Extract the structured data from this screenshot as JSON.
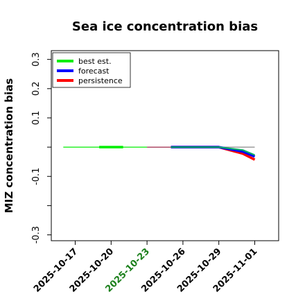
{
  "chart_data": {
    "type": "line",
    "title": "Sea ice concentration bias",
    "ylabel": "MIZ concentration bias",
    "xlabel": "",
    "ylim": [
      -0.32,
      0.33
    ],
    "xlim": [
      "2025-10-15",
      "2025-11-03"
    ],
    "grid": false,
    "legend_position": "top-left",
    "yticks": [
      {
        "value": 0.3,
        "label": "0.3"
      },
      {
        "value": 0.2,
        "label": "0.2"
      },
      {
        "value": 0.1,
        "label": "0.1"
      },
      {
        "value": 0.0,
        "label": ""
      },
      {
        "value": -0.1,
        "label": "-0.1"
      },
      {
        "value": -0.2,
        "label": ""
      },
      {
        "value": -0.3,
        "label": "-0.3"
      }
    ],
    "xticks": [
      {
        "date": "2025-10-17",
        "label": "2025-10-17",
        "color": "#000000"
      },
      {
        "date": "2025-10-20",
        "label": "2025-10-20",
        "color": "#000000"
      },
      {
        "date": "2025-10-23",
        "label": "2025-10-23",
        "color": "#1a7f1a"
      },
      {
        "date": "2025-10-26",
        "label": "2025-10-26",
        "color": "#000000"
      },
      {
        "date": "2025-10-29",
        "label": "2025-10-29",
        "color": "#000000"
      },
      {
        "date": "2025-11-01",
        "label": "2025-11-01",
        "color": "#000000"
      }
    ],
    "reference_line": {
      "y": 0.0,
      "from": "2025-10-23",
      "to": "2025-11-01",
      "color": "#888888"
    },
    "series": [
      {
        "name": "best est.",
        "color": "#00ee00",
        "style": "thin",
        "points": [
          {
            "x": "2025-10-16",
            "y": 0.0
          },
          {
            "x": "2025-10-23",
            "y": 0.0
          }
        ]
      },
      {
        "name": "best est.",
        "color": "#00ee00",
        "style": "thick",
        "points": [
          {
            "x": "2025-10-19",
            "y": 0.0
          },
          {
            "x": "2025-10-21",
            "y": 0.0
          }
        ]
      },
      {
        "name": "best est.",
        "color": "#00aa66",
        "style": "medium",
        "points": [
          {
            "x": "2025-10-25",
            "y": 0.0
          },
          {
            "x": "2025-10-29",
            "y": 0.0
          },
          {
            "x": "2025-10-31",
            "y": -0.01
          },
          {
            "x": "2025-11-01",
            "y": -0.027
          }
        ]
      },
      {
        "name": "forecast",
        "color": "#0000ff",
        "style": "thick",
        "points": [
          {
            "x": "2025-10-25",
            "y": 0.0
          },
          {
            "x": "2025-10-29",
            "y": 0.0
          },
          {
            "x": "2025-10-31",
            "y": -0.015
          },
          {
            "x": "2025-11-01",
            "y": -0.032
          }
        ]
      },
      {
        "name": "persistence",
        "color": "#ff0000",
        "style": "thick",
        "points": [
          {
            "x": "2025-10-25",
            "y": 0.0
          },
          {
            "x": "2025-10-29",
            "y": 0.0
          },
          {
            "x": "2025-10-31",
            "y": -0.022
          },
          {
            "x": "2025-11-01",
            "y": -0.043
          }
        ]
      }
    ],
    "thin_segments": [
      {
        "color": "#aa3355",
        "from": "2025-10-23",
        "to": "2025-10-25",
        "y": 0.0
      }
    ],
    "legend": [
      {
        "label": "best est.",
        "color": "#00ee00"
      },
      {
        "label": "forecast",
        "color": "#0000ff"
      },
      {
        "label": "persistence",
        "color": "#ff0000"
      }
    ]
  }
}
